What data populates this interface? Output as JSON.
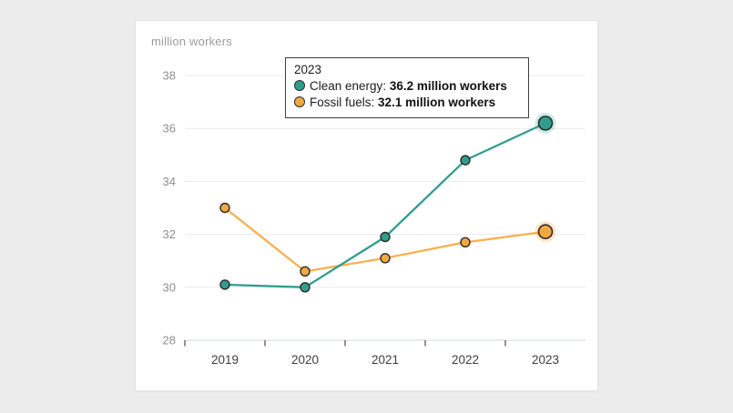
{
  "page": {
    "background_color": "#ECECEC",
    "card_background": "#FFFFFF"
  },
  "chart": {
    "unit_label": "million workers",
    "styles": {
      "grid_color": "#E9E9E9",
      "axis_line_color": "#D9DFEA",
      "tick_color": "#4A4A4A",
      "y_label_color": "#8F8F8F",
      "x_label_color": "#3E3E3E",
      "marker_stroke": "#2B2B2B"
    }
  },
  "tooltip": {
    "title": "2023",
    "entries": [
      {
        "label": "Clean energy",
        "separator": ": ",
        "value": "36.2 million workers",
        "color": "#2F9E8D"
      },
      {
        "label": "Fossil fuels",
        "separator": ": ",
        "value": "32.1 million workers",
        "color": "#F0A941"
      }
    ]
  },
  "chart_data": {
    "type": "line",
    "title": "million workers",
    "ylabel": "million workers",
    "xlabel": "",
    "categories": [
      "2019",
      "2020",
      "2021",
      "2022",
      "2023"
    ],
    "series": [
      {
        "name": "Clean energy",
        "values": [
          30.1,
          30.0,
          31.9,
          34.8,
          36.2
        ],
        "line_color": "#2F9E8D",
        "marker_color": "#2F9E8D",
        "halo_color": "rgba(47,158,141,0.22)"
      },
      {
        "name": "Fossil fuels",
        "values": [
          33.0,
          30.6,
          31.1,
          31.7,
          32.1
        ],
        "line_color": "#F8B051",
        "marker_color": "#F0A941",
        "halo_color": "rgba(240,169,65,0.28)"
      }
    ],
    "ylim": [
      28,
      38
    ],
    "ytick_step": 2,
    "grid": true,
    "highlight_category": "2023",
    "legend_position": "tooltip-top"
  }
}
